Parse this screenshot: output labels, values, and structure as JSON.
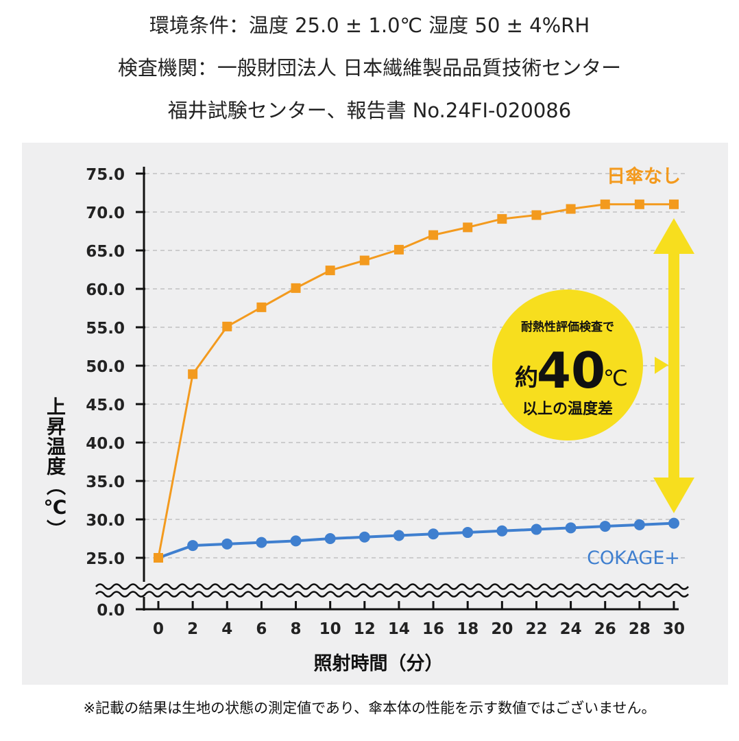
{
  "header": {
    "line1": "環境条件：温度 25.0 ± 1.0℃ 湿度 50 ± 4%RH",
    "line2": "検査機関：一般財団法人 日本繊維製品品質技術センター",
    "line3": "福井試験センター、報告書 No.24FI-020086"
  },
  "footnote": "※記載の結果は生地の状態の測定値であり、傘本体の性能を示す数値ではございません。",
  "callout": {
    "top": "耐熱性評価検査で",
    "prefix": "約",
    "value": "40",
    "unit": "℃",
    "bottom": "以上の温度差"
  },
  "chart_data": {
    "type": "line",
    "xlabel": "照射時間（分）",
    "ylabel": "上昇温度（℃）",
    "x": [
      0,
      2,
      4,
      6,
      8,
      10,
      12,
      14,
      16,
      18,
      20,
      22,
      24,
      26,
      28,
      30
    ],
    "x_ticks": [
      "0",
      "2",
      "4",
      "6",
      "8",
      "10",
      "12",
      "14",
      "16",
      "18",
      "20",
      "22",
      "24",
      "26",
      "28",
      "30"
    ],
    "y_ticks": [
      "0.0",
      "25.0",
      "30.0",
      "35.0",
      "40.0",
      "45.0",
      "50.0",
      "55.0",
      "60.0",
      "65.0",
      "70.0",
      "75.0"
    ],
    "ylim": [
      25,
      75
    ],
    "y_axis_break": true,
    "grid": "horizontal dashed",
    "series": [
      {
        "name": "日傘なし",
        "color": "#f39a1e",
        "marker": "square",
        "values": [
          25.0,
          48.9,
          55.1,
          57.6,
          60.1,
          62.4,
          63.7,
          65.1,
          67.0,
          68.0,
          69.1,
          69.6,
          70.4,
          71.0,
          71.0,
          71.0
        ]
      },
      {
        "name": "COKAGE+",
        "color": "#3f7fcf",
        "marker": "circle",
        "values": [
          25.0,
          26.6,
          26.8,
          27.0,
          27.2,
          27.5,
          27.7,
          27.9,
          28.1,
          28.3,
          28.5,
          28.7,
          28.9,
          29.1,
          29.3,
          29.5
        ]
      }
    ]
  },
  "colors": {
    "panel": "#efeff0",
    "arrow": "#f7de1e",
    "axis": "#111111"
  }
}
